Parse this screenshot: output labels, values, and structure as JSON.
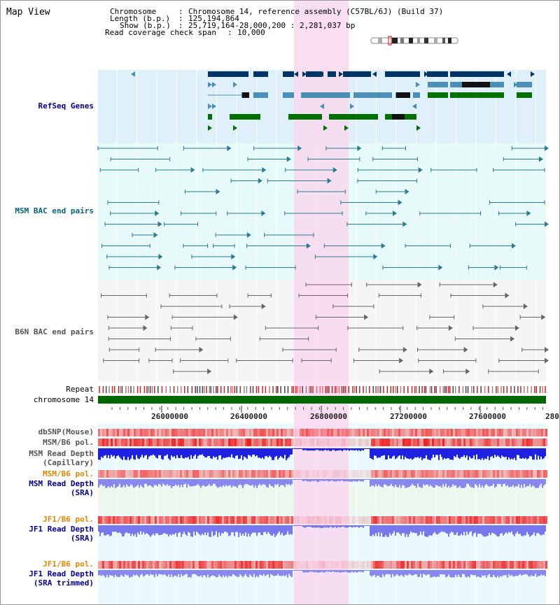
{
  "view_title": "Map View",
  "header": {
    "chromosome_key": "Chromosome",
    "chromosome_value": "Chromosome 14, reference assembly (C57BL/6J) (Build 37)",
    "length_key": "Length (b.p.)",
    "length_value": "125,194,864",
    "show_key": "Show (b.p.)",
    "show_value": "25,719,164-28,000,200 : 2,281,037 bp",
    "span_key": "Read coverage check span",
    "span_value": "10,000"
  },
  "tracks": {
    "refseq": "RefSeq Genes",
    "msm_bac": "MSM BAC end pairs",
    "b6n_bac": "B6N BAC end pairs",
    "repeat": "Repeat",
    "chromosome": "chromosome 14",
    "dbsnp": "dbSNP(Mouse)",
    "msm_b6_pol": "MSM/B6 pol.",
    "msm_depth_cap_1": "MSM Read Depth",
    "msm_depth_cap_2": "(Capillary)",
    "msm_b6_pol_sra": "MSM/B6 pol.",
    "msm_depth_sra_1": "MSM Read Depth",
    "msm_depth_sra_2": "(SRA)",
    "jf1_b6_pol": "JF1/B6 pol.",
    "jf1_depth_1": "JF1 Read Depth",
    "jf1_depth_2": "(SRA)",
    "jf1_b6_pol_trim": "JF1/B6 pol.",
    "jf1_trim_1": "JF1 Read Depth",
    "jf1_trim_2": "(SRA trimmed)"
  },
  "axis": {
    "ticks": [
      "26000000",
      "26400000",
      "26800000",
      "27200000",
      "27600000",
      "280"
    ]
  },
  "colors": {
    "refseq_bg": "#dff0fa",
    "msm_bg": "#e6fafa",
    "b6n_bg": "#f5f5f5",
    "highlight": "#f8d8ef",
    "chromosome": "#006600",
    "dbsnp": "#f08080",
    "depth": "#2020e0",
    "depth_sra": "#8888ee",
    "gene_dark": "#003366",
    "gene_mid": "#4a8fb8",
    "gene_green": "#007000",
    "label_navy": "#000099",
    "label_teal": "#006680",
    "label_gray": "#555555",
    "label_orange": "#dd8800"
  }
}
